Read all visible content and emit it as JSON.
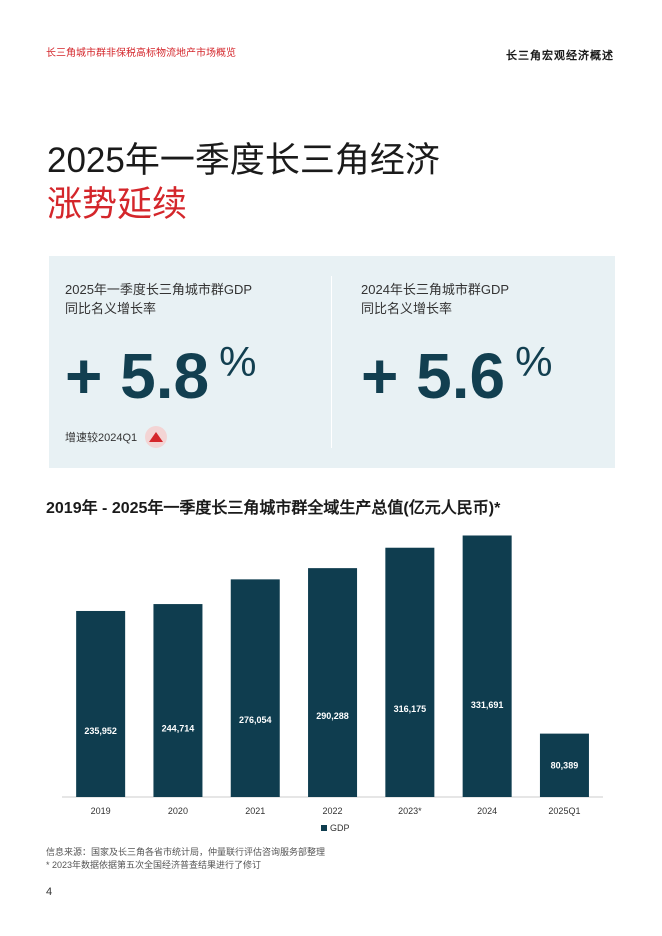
{
  "header": {
    "left": "长三角城市群非保税高标物流地产市场概览",
    "right": "长三角宏观经济概述"
  },
  "title": {
    "line1": "2025年一季度长三角经济",
    "line2": "涨势延续"
  },
  "stats": [
    {
      "label": "2025年一季度长三角城市群GDP\n同比名义增长率",
      "value": "+ 5.8",
      "unit": "%"
    },
    {
      "label": "2024年长三角城市群GDP\n同比名义增长率",
      "value": "+ 5.6",
      "unit": "%"
    }
  ],
  "compare": {
    "text": "增速较2024Q1",
    "icon": "up-triangle-icon",
    "color": "#d4262b"
  },
  "chart_title": "2019年 - 2025年一季度长三角城市群全域生产总值(亿元人民币)*",
  "chart_data": {
    "type": "bar",
    "categories": [
      "2019",
      "2020",
      "2021",
      "2022",
      "2023*",
      "2024",
      "2025Q1"
    ],
    "series": [
      {
        "name": "GDP",
        "values": [
          235952,
          244714,
          276054,
          290288,
          316175,
          331691,
          80389
        ]
      }
    ],
    "value_labels": [
      "235,952",
      "244,714",
      "276,054",
      "290,288",
      "316,175",
      "331,691",
      "80,389"
    ],
    "ylim": [
      0,
      345000
    ],
    "grid": false,
    "legend_position": "bottom-center",
    "bar_color": "#0f3d4f"
  },
  "source": {
    "line1": "信息来源：国家及长三角各省市统计局，仲量联行评估咨询服务部整理",
    "line2": "* 2023年数据依据第五次全国经济普查结果进行了修订"
  },
  "page_number": "4"
}
